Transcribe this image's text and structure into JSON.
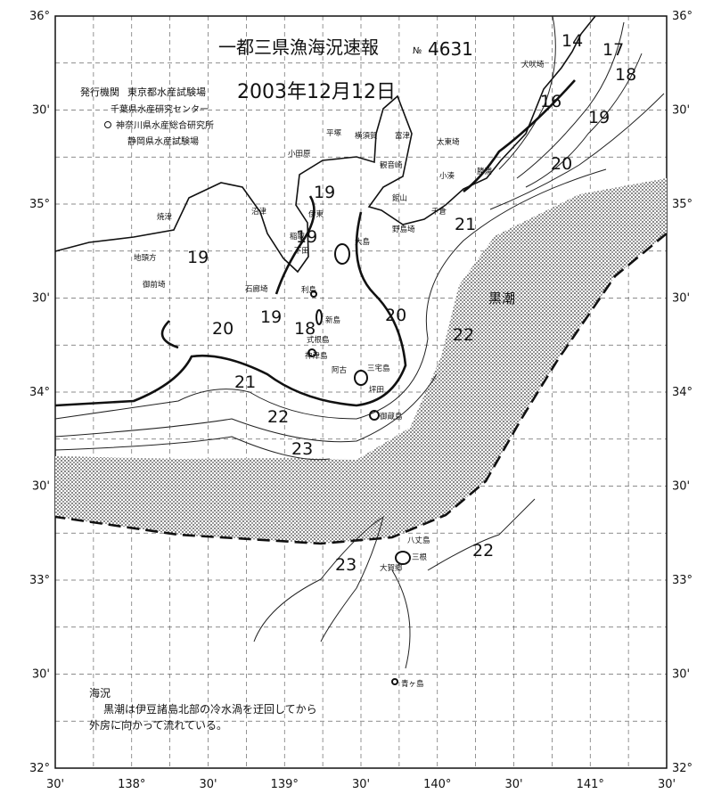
{
  "header": {
    "title": "一都三県漁海況速報",
    "number_prefix": "№",
    "number": "4631",
    "issuer_label": "発行機関",
    "date": "2003年12月12日",
    "issuers": [
      "東京都水産試験場",
      "千葉県水産研究センター",
      "神奈川県水産総合研究所",
      "静岡県水産試験場"
    ]
  },
  "lat_labels_left": [
    "36°",
    "30'",
    "35°",
    "30'",
    "34°",
    "30'",
    "33°",
    "30'",
    "32°"
  ],
  "lat_labels_right": [
    "36°",
    "30'",
    "35°",
    "30'",
    "34°",
    "30'",
    "33°",
    "30'",
    "32°"
  ],
  "lon_labels": [
    "30'",
    "138°",
    "30'",
    "139°",
    "30'",
    "140°",
    "30'",
    "141°",
    "30'"
  ],
  "place_names": [
    "犬吠埼",
    "太東埼",
    "勝浦",
    "小湊",
    "千倉",
    "野島埼",
    "平塚",
    "横須賀",
    "富津",
    "小田原",
    "観音崎",
    "館山",
    "沼津",
    "伊東",
    "稲取",
    "下田",
    "大島",
    "石廊埼",
    "利島",
    "新島",
    "式根島",
    "神津島",
    "阿古",
    "三宅島",
    "坪田",
    "御蔵島",
    "八丈島",
    "三根",
    "大賀郷",
    "青ヶ島",
    "焼津",
    "地頭方",
    "御前埼"
  ],
  "isotherm_labels": [
    "14",
    "17",
    "18",
    "16",
    "19",
    "20",
    "21",
    "19",
    "19",
    "19",
    "20",
    "19",
    "18",
    "20",
    "22",
    "21",
    "22",
    "23",
    "23",
    "22"
  ],
  "current_label": "黒潮",
  "note": {
    "heading": "海況",
    "lines": [
      "黒潮は伊豆諸島北部の冷水渦を迂回してから",
      "外房に向かって流れている。"
    ]
  }
}
